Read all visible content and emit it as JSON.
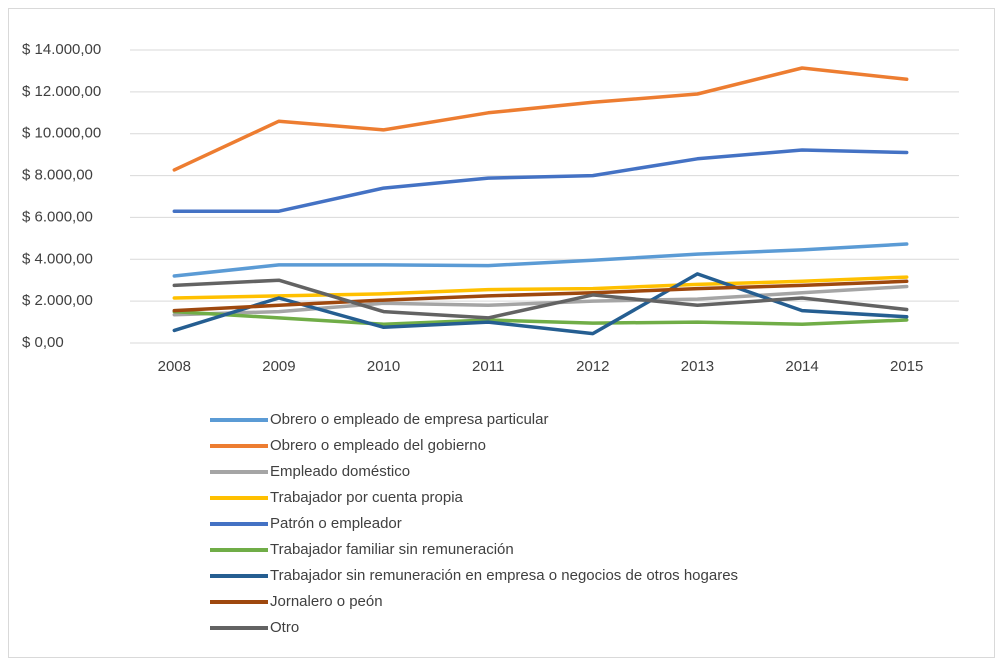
{
  "chart_data": {
    "type": "line",
    "categories": [
      "2008",
      "2009",
      "2010",
      "2011",
      "2012",
      "2013",
      "2014",
      "2015"
    ],
    "series": [
      {
        "name": "Obrero o empleado de empresa particular",
        "color": "#5b9bd5",
        "values": [
          3200,
          3730,
          3730,
          3700,
          3950,
          4250,
          4450,
          4730
        ]
      },
      {
        "name": "Obrero o empleado del gobierno",
        "color": "#ed7d31",
        "values": [
          8270,
          10600,
          10180,
          11000,
          11500,
          11900,
          13140,
          12600
        ]
      },
      {
        "name": "Empleado doméstico",
        "color": "#a5a5a5",
        "values": [
          1350,
          1500,
          1900,
          1800,
          2000,
          2100,
          2400,
          2700
        ]
      },
      {
        "name": "Trabajador por cuenta propia",
        "color": "#ffc000",
        "values": [
          2150,
          2250,
          2350,
          2550,
          2600,
          2800,
          2950,
          3150
        ]
      },
      {
        "name": "Patrón o empleador",
        "color": "#4472c4",
        "values": [
          6300,
          6300,
          7400,
          7880,
          8000,
          8800,
          9220,
          9100
        ]
      },
      {
        "name": "Trabajador familiar sin remuneración",
        "color": "#70ad47",
        "values": [
          1500,
          1200,
          900,
          1100,
          950,
          1000,
          900,
          1100
        ]
      },
      {
        "name": "Trabajador sin remuneración en empresa o negocios de otros hogares",
        "color": "#255e91",
        "values": [
          600,
          2150,
          750,
          1000,
          450,
          3300,
          1550,
          1250
        ]
      },
      {
        "name": "Jornalero o peón",
        "color": "#9e480e",
        "values": [
          1550,
          1800,
          2050,
          2250,
          2400,
          2600,
          2750,
          2950
        ]
      },
      {
        "name": "Otro",
        "color": "#636363",
        "values": [
          2750,
          3000,
          1500,
          1200,
          2300,
          1800,
          2150,
          1600
        ]
      }
    ],
    "ylim": [
      0,
      14000
    ],
    "yticks": [
      {
        "value": 0,
        "label": "$ 0,00"
      },
      {
        "value": 2000,
        "label": "$ 2.000,00"
      },
      {
        "value": 4000,
        "label": "$ 4.000,00"
      },
      {
        "value": 6000,
        "label": "$ 6.000,00"
      },
      {
        "value": 8000,
        "label": "$ 8.000,00"
      },
      {
        "value": 10000,
        "label": "$ 10.000,00"
      },
      {
        "value": 12000,
        "label": "$ 12.000,00"
      },
      {
        "value": 14000,
        "label": "$ 14.000,00"
      }
    ],
    "grid": true,
    "legend": "bottom"
  }
}
